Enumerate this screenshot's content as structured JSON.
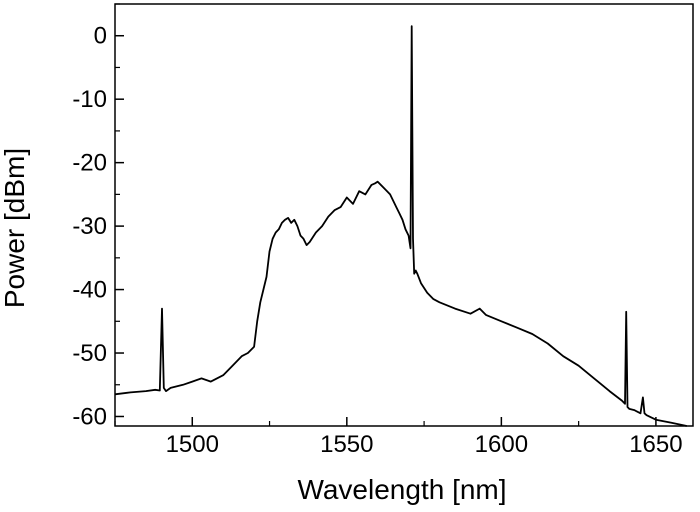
{
  "chart_data": {
    "type": "line",
    "title": "",
    "xlabel": "Wavelength [nm]",
    "ylabel": "Power [dBm]",
    "xlim": [
      1475,
      1662
    ],
    "ylim": [
      -61.5,
      5
    ],
    "xticks": [
      1500,
      1550,
      1600,
      1650
    ],
    "xtick_labels": [
      "1500",
      "1550",
      "1600",
      "1650"
    ],
    "yticks": [
      0,
      -10,
      -20,
      -30,
      -40,
      -50,
      -60
    ],
    "ytick_labels": [
      "0",
      "-10",
      "-20",
      "-30",
      "-40",
      "-50",
      "-60"
    ],
    "grid": false,
    "legend": "none",
    "line_color": "#000000",
    "series": [
      {
        "x": [
          1475,
          1480,
          1485,
          1488,
          1489.5,
          1490.2,
          1490.8,
          1491.5,
          1493,
          1497,
          1500,
          1503,
          1506,
          1510,
          1513,
          1516,
          1518,
          1520,
          1521,
          1522,
          1523,
          1524,
          1525,
          1526,
          1527,
          1528,
          1529,
          1530,
          1531,
          1532,
          1533,
          1534,
          1535,
          1536,
          1537,
          1538,
          1540,
          1542,
          1544,
          1546,
          1548,
          1550,
          1552,
          1554,
          1556,
          1558,
          1559,
          1560,
          1562,
          1564,
          1566,
          1567,
          1568,
          1569,
          1570,
          1570.6,
          1571.0,
          1571.4,
          1571.8,
          1572.3,
          1572.8,
          1574,
          1576,
          1578,
          1580,
          1585,
          1590,
          1593,
          1595,
          1600,
          1605,
          1610,
          1615,
          1620,
          1625,
          1630,
          1635,
          1639,
          1640.0,
          1640.4,
          1640.8,
          1641.4,
          1643,
          1645,
          1645.8,
          1646.3,
          1647,
          1650,
          1655,
          1660
        ],
        "y": [
          -56.5,
          -56.2,
          -56.0,
          -55.8,
          -55.9,
          -43.0,
          -55.5,
          -56.0,
          -55.5,
          -55.0,
          -54.5,
          -54.0,
          -54.5,
          -53.5,
          -52.0,
          -50.5,
          -50.0,
          -49.0,
          -45.0,
          -42.0,
          -40.0,
          -38.0,
          -34.0,
          -32.0,
          -31.0,
          -30.5,
          -29.5,
          -29.0,
          -28.7,
          -29.5,
          -29.0,
          -30.0,
          -31.5,
          -32.0,
          -33.0,
          -32.5,
          -31.0,
          -30.0,
          -28.5,
          -27.5,
          -27.0,
          -25.5,
          -26.5,
          -24.5,
          -25.0,
          -23.5,
          -23.3,
          -23.0,
          -24.0,
          -25.0,
          -27.0,
          -28.0,
          -29.0,
          -30.5,
          -31.5,
          -33.5,
          1.5,
          -32.0,
          -37.5,
          -37.0,
          -37.5,
          -39.0,
          -40.5,
          -41.5,
          -42.0,
          -43.0,
          -43.8,
          -43.0,
          -44.0,
          -45.0,
          -46.0,
          -47.0,
          -48.5,
          -50.5,
          -52.0,
          -54.0,
          -56.0,
          -57.5,
          -58.0,
          -43.5,
          -58.5,
          -58.8,
          -59.0,
          -59.5,
          -57.0,
          -59.5,
          -59.8,
          -60.5,
          -61.0,
          -61.5
        ]
      }
    ]
  }
}
